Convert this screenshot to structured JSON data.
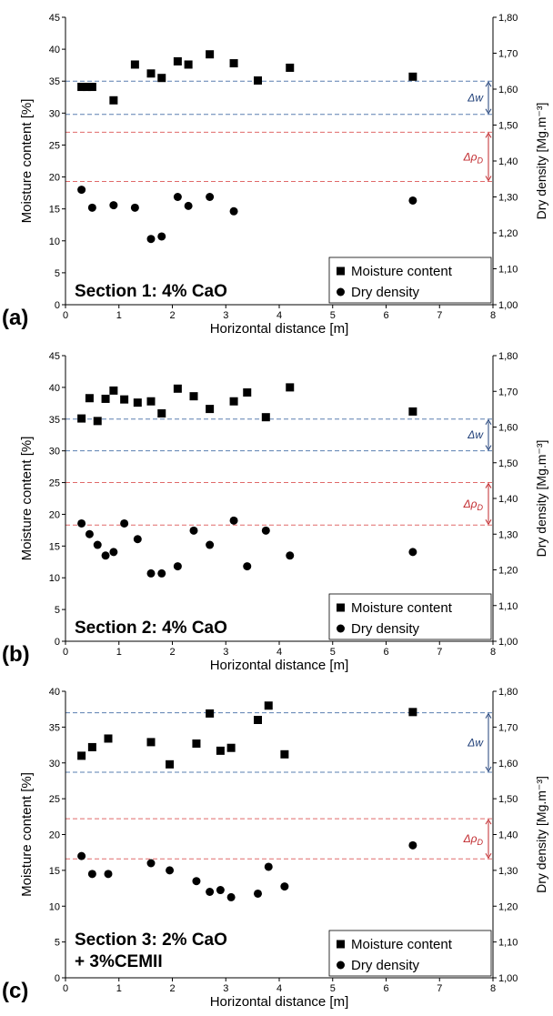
{
  "chart_data": [
    {
      "type": "scatter",
      "panel_label": "(a)",
      "section_label": [
        "Section 1: 4% CaO"
      ],
      "xlabel": "Horizontal distance [m]",
      "ylabel": "Moisture content [%]",
      "ylabel2": "Dry density [Mg.m⁻³]",
      "xlim": [
        0,
        8
      ],
      "ylim": [
        0,
        45
      ],
      "y2lim": [
        1.0,
        1.8
      ],
      "x_ticks": [
        "0",
        "1",
        "2",
        "3",
        "4",
        "5",
        "6",
        "7",
        "8"
      ],
      "y_ticks": [
        "0",
        "5",
        "10",
        "15",
        "20",
        "25",
        "30",
        "35",
        "40",
        "45"
      ],
      "y2_ticks": [
        "1,00",
        "1,10",
        "1,20",
        "1,30",
        "1,40",
        "1,50",
        "1,60",
        "1,70",
        "1,80"
      ],
      "legend": [
        "Moisture content",
        "Dry density"
      ],
      "legend_position": "bottom-right",
      "series": [
        {
          "name": "Moisture content",
          "marker": "square",
          "axis": "left",
          "x": [
            0.3,
            0.4,
            0.5,
            0.9,
            1.3,
            1.6,
            1.8,
            2.1,
            2.3,
            2.7,
            3.15,
            3.6,
            4.2,
            6.5
          ],
          "y": [
            34.1,
            34.1,
            34.1,
            32.0,
            37.6,
            36.2,
            35.5,
            38.1,
            37.6,
            39.2,
            37.8,
            35.1,
            37.1,
            35.7
          ]
        },
        {
          "name": "Dry density",
          "marker": "circle",
          "axis": "right",
          "x": [
            0.3,
            0.5,
            0.9,
            1.3,
            1.6,
            1.8,
            2.1,
            2.3,
            2.7,
            3.15,
            6.5
          ],
          "y": [
            1.32,
            1.27,
            1.277,
            1.27,
            1.183,
            1.19,
            1.3,
            1.275,
            1.3,
            1.26,
            1.29
          ]
        }
      ],
      "bands": [
        {
          "label": "Δw",
          "label_sub": "",
          "color": "#5a7fb0",
          "text_color": "#1f3f78",
          "y_low": 29.8,
          "y_high": 35.0
        },
        {
          "label": "Δρ",
          "label_sub": "D",
          "color": "#e06a6a",
          "text_color": "#c0282c",
          "y_low": 19.3,
          "y_high": 27.0
        }
      ]
    },
    {
      "type": "scatter",
      "panel_label": "(b)",
      "section_label": [
        "Section 2: 4% CaO"
      ],
      "xlabel": "Horizontal distance [m]",
      "ylabel": "Moisture content [%]",
      "ylabel2": "Dry density [Mg.m⁻³]",
      "xlim": [
        0,
        8
      ],
      "ylim": [
        0,
        45
      ],
      "y2lim": [
        1.0,
        1.8
      ],
      "x_ticks": [
        "0",
        "1",
        "2",
        "3",
        "4",
        "5",
        "6",
        "7",
        "8"
      ],
      "y_ticks": [
        "0",
        "5",
        "10",
        "15",
        "20",
        "25",
        "30",
        "35",
        "40",
        "45"
      ],
      "y2_ticks": [
        "1,00",
        "1,10",
        "1,20",
        "1,30",
        "1,40",
        "1,50",
        "1,60",
        "1,70",
        "1,80"
      ],
      "legend": [
        "Moisture content",
        "Dry density"
      ],
      "legend_position": "bottom-right",
      "series": [
        {
          "name": "Moisture content",
          "marker": "square",
          "axis": "left",
          "x": [
            0.3,
            0.45,
            0.6,
            0.75,
            0.9,
            1.1,
            1.35,
            1.6,
            1.8,
            2.1,
            2.4,
            2.7,
            3.15,
            3.4,
            3.75,
            4.2,
            6.5
          ],
          "y": [
            35.1,
            38.3,
            34.7,
            38.2,
            39.5,
            38.1,
            37.6,
            37.8,
            35.9,
            39.8,
            38.6,
            36.6,
            37.8,
            39.2,
            35.3,
            40.0,
            36.2
          ]
        },
        {
          "name": "Dry density",
          "marker": "circle",
          "axis": "right",
          "x": [
            0.3,
            0.45,
            0.6,
            0.75,
            0.9,
            1.1,
            1.35,
            1.6,
            1.8,
            2.1,
            2.4,
            2.7,
            3.15,
            3.4,
            3.75,
            4.2,
            6.5
          ],
          "y": [
            1.33,
            1.3,
            1.27,
            1.24,
            1.25,
            1.33,
            1.286,
            1.19,
            1.19,
            1.21,
            1.31,
            1.27,
            1.338,
            1.21,
            1.31,
            1.24,
            1.25
          ]
        }
      ],
      "bands": [
        {
          "label": "Δw",
          "label_sub": "",
          "color": "#5a7fb0",
          "text_color": "#1f3f78",
          "y_low": 30.0,
          "y_high": 35.0
        },
        {
          "label": "Δρ",
          "label_sub": "D",
          "color": "#e06a6a",
          "text_color": "#c0282c",
          "y_low": 18.3,
          "y_high": 25.0
        }
      ]
    },
    {
      "type": "scatter",
      "panel_label": "(c)",
      "section_label": [
        "Section 3: 2% CaO",
        "+ 3%CEMII"
      ],
      "xlabel": "Horizontal distance [m]",
      "ylabel": "Moisture content [%]",
      "ylabel2": "Dry density [Mg.m⁻³]",
      "xlim": [
        0,
        8
      ],
      "ylim": [
        0,
        40
      ],
      "y2lim": [
        1.0,
        1.8
      ],
      "x_ticks": [
        "0",
        "1",
        "2",
        "3",
        "4",
        "5",
        "6",
        "7",
        "8"
      ],
      "y_ticks": [
        "0",
        "5",
        "10",
        "15",
        "20",
        "25",
        "30",
        "35",
        "40"
      ],
      "y2_ticks": [
        "1,00",
        "1,10",
        "1,20",
        "1,30",
        "1,40",
        "1,50",
        "1,60",
        "1,70",
        "1,80"
      ],
      "legend": [
        "Moisture content",
        "Dry density"
      ],
      "legend_position": "bottom-right",
      "series": [
        {
          "name": "Moisture content",
          "marker": "square",
          "axis": "left",
          "x": [
            0.3,
            0.5,
            0.8,
            1.6,
            1.95,
            2.45,
            2.7,
            2.9,
            3.1,
            3.6,
            3.8,
            4.1,
            6.5
          ],
          "y": [
            31.0,
            32.2,
            33.4,
            32.9,
            29.8,
            32.7,
            36.9,
            31.7,
            32.1,
            36.0,
            38.0,
            31.2,
            37.1
          ]
        },
        {
          "name": "Dry density",
          "marker": "circle",
          "axis": "right",
          "x": [
            0.3,
            0.5,
            0.8,
            1.6,
            1.95,
            2.45,
            2.7,
            2.9,
            3.1,
            3.6,
            3.8,
            4.1,
            6.5
          ],
          "y": [
            1.34,
            1.29,
            1.29,
            1.32,
            1.3,
            1.27,
            1.24,
            1.245,
            1.225,
            1.235,
            1.31,
            1.255,
            1.37
          ]
        }
      ],
      "bands": [
        {
          "label": "Δw",
          "label_sub": "",
          "color": "#5a7fb0",
          "text_color": "#1f3f78",
          "y_low": 28.7,
          "y_high": 37.0
        },
        {
          "label": "Δρ",
          "label_sub": "D",
          "color": "#e06a6a",
          "text_color": "#c0282c",
          "y_low": 16.6,
          "y_high": 22.2
        }
      ]
    }
  ]
}
